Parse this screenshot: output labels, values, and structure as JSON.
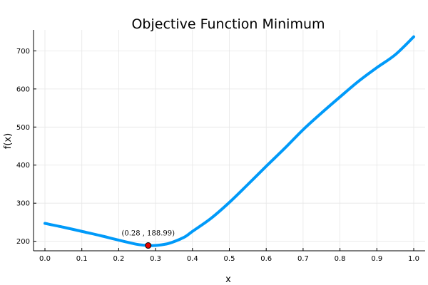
{
  "chart_data": {
    "type": "line",
    "title": "Objective Function Minimum",
    "xlabel": "x",
    "ylabel": "f(x)",
    "xlim": [
      0.0,
      1.0
    ],
    "ylim": [
      175,
      755
    ],
    "xticks": [
      "0.0",
      "0.1",
      "0.2",
      "0.3",
      "0.4",
      "0.5",
      "0.6",
      "0.7",
      "0.8",
      "0.9",
      "1.0"
    ],
    "yticks": [
      "200",
      "300",
      "400",
      "500",
      "600",
      "700"
    ],
    "grid": true,
    "legend": "none",
    "series": [
      {
        "color": "#009af9",
        "x": [
          0.0,
          0.05,
          0.1,
          0.15,
          0.2,
          0.25,
          0.28,
          0.3,
          0.33,
          0.35,
          0.38,
          0.4,
          0.45,
          0.5,
          0.55,
          0.6,
          0.65,
          0.7,
          0.75,
          0.8,
          0.85,
          0.9,
          0.95,
          1.0
        ],
        "y": [
          247,
          237,
          226,
          215,
          203,
          192,
          189,
          189,
          193,
          199,
          212,
          226,
          260,
          302,
          349,
          397,
          444,
          493,
          537,
          579,
          620,
          656,
          690,
          737
        ]
      }
    ],
    "marker": {
      "x": 0.28,
      "y": 188.99,
      "label": "(0.28 , 188.99)",
      "fill": "#e40000",
      "stroke": "#000000"
    }
  }
}
